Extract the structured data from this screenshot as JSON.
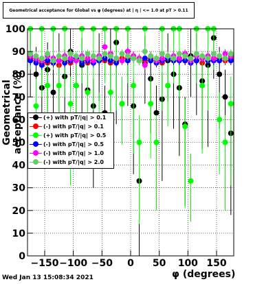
{
  "title": "Geometrical acceptance for Global vs φ (degrees) at | η | <= 1.0 at pT > 0.11",
  "timestamp": "Wed Jan 13 15:08:34 2021",
  "chart_data": {
    "type": "scatter",
    "xlabel": "φ (degrees)",
    "ylabel": "Geometrical acceptance (%)",
    "xlim": [
      -180,
      180
    ],
    "ylim": [
      0,
      100
    ],
    "xticks": [
      "-150",
      "-100",
      "-50",
      "0",
      "50",
      "100",
      "150"
    ],
    "yticks": [
      "0",
      "10",
      "20",
      "30",
      "40",
      "50",
      "60",
      "70",
      "80",
      "90",
      "100"
    ],
    "grid": true,
    "legend_position": "middle-left",
    "series": [
      {
        "name": "(+) with pT/|q| > 0.1",
        "color": "#000000",
        "x": [
          -175,
          -165,
          -155,
          -145,
          -135,
          -125,
          -115,
          -105,
          -95,
          -85,
          -75,
          -65,
          -55,
          -45,
          -35,
          -25,
          -15,
          -5,
          5,
          15,
          25,
          35,
          45,
          55,
          65,
          75,
          85,
          95,
          105,
          115,
          125,
          135,
          145,
          155,
          165,
          175
        ],
        "y": [
          88,
          80,
          74,
          82,
          72,
          86,
          79,
          90,
          75,
          84,
          73,
          66,
          86,
          63,
          88,
          94,
          67,
          90,
          66,
          33,
          85,
          78,
          63,
          69,
          86,
          80,
          74,
          58,
          88,
          86,
          77,
          84,
          96,
          80,
          70,
          54
        ]
      },
      {
        "name": "(-) with pT/|q| > 0.1",
        "color": "#ff0000",
        "x": [
          -175,
          -165,
          -155,
          -145,
          -135,
          -125,
          -115,
          -105,
          -95,
          -85,
          -75,
          -65,
          -55,
          -45,
          -35,
          -25,
          -15,
          -5,
          5,
          15,
          25,
          35,
          45,
          55,
          65,
          75,
          85,
          95,
          105,
          115,
          125,
          135,
          145,
          155,
          165,
          175
        ],
        "y": [
          87,
          86,
          85,
          85,
          86,
          84,
          86,
          85,
          87,
          86,
          85,
          86,
          87,
          86,
          85,
          86,
          87,
          87,
          88,
          86,
          86,
          87,
          86,
          85,
          87,
          86,
          87,
          86,
          86,
          86,
          85,
          86,
          87,
          87,
          86,
          87
        ]
      },
      {
        "name": "(+) with pT/|q| > 0.5",
        "color": "#00ff00",
        "x": [
          -175,
          -165,
          -155,
          -145,
          -135,
          -125,
          -115,
          -105,
          -95,
          -85,
          -75,
          -65,
          -55,
          -45,
          -35,
          -25,
          -15,
          -5,
          5,
          15,
          25,
          35,
          45,
          55,
          65,
          75,
          85,
          95,
          105,
          115,
          125,
          135,
          145,
          155,
          165,
          175
        ],
        "y": [
          100,
          66,
          100,
          75,
          100,
          75,
          100,
          67,
          75,
          100,
          72,
          100,
          60,
          100,
          72,
          100,
          67,
          100,
          75,
          50,
          100,
          67,
          50,
          100,
          75,
          100,
          100,
          57,
          33,
          100,
          75,
          100,
          100,
          60,
          50,
          67
        ]
      },
      {
        "name": "(-) with pT/|q| > 0.5",
        "color": "#0000ff",
        "x": [
          -175,
          -165,
          -155,
          -145,
          -135,
          -125,
          -115,
          -105,
          -95,
          -85,
          -75,
          -65,
          -55,
          -45,
          -35,
          -25,
          -15,
          -5,
          5,
          15,
          25,
          35,
          45,
          55,
          65,
          75,
          85,
          95,
          105,
          115,
          125,
          135,
          145,
          155,
          165,
          175
        ],
        "y": [
          86,
          85,
          84,
          86,
          85,
          86,
          85,
          86,
          87,
          85,
          86,
          85,
          86,
          87,
          86,
          85,
          86,
          86,
          87,
          86,
          87,
          86,
          85,
          86,
          87,
          86,
          86,
          86,
          85,
          86,
          87,
          86,
          86,
          86,
          87,
          86
        ]
      },
      {
        "name": "(-) with pT/|q| > 1.0",
        "color": "#ff00ff",
        "x": [
          -175,
          -165,
          -155,
          -145,
          -135,
          -125,
          -115,
          -105,
          -95,
          -85,
          -75,
          -65,
          -55,
          -45,
          -35,
          -25,
          -15,
          -5,
          5,
          15,
          25,
          35,
          45,
          55,
          65,
          75,
          85,
          95,
          105,
          115,
          125,
          135,
          145,
          155,
          165,
          175
        ],
        "y": [
          88,
          87,
          86,
          88,
          87,
          86,
          88,
          87,
          86,
          88,
          87,
          86,
          88,
          92,
          89,
          87,
          86,
          90,
          88,
          87,
          84,
          88,
          86,
          87,
          88,
          88,
          87,
          89,
          86,
          88,
          87,
          88,
          87,
          88,
          89,
          88
        ]
      },
      {
        "name": "(-) with pT/|q| > 2.0",
        "color": "#66cc66",
        "x": [
          -175,
          -165,
          -155,
          -145,
          -135,
          -125,
          -115,
          -105,
          -95,
          -85,
          -75,
          -65,
          -55,
          -45,
          -35,
          -25,
          -15,
          -5,
          5,
          15,
          25,
          35,
          45,
          55,
          65,
          75,
          85,
          95,
          105,
          115,
          125,
          135,
          145,
          155,
          165,
          175
        ],
        "y": [
          89,
          88,
          87,
          89,
          86,
          88,
          87,
          89,
          88,
          87,
          89,
          88,
          87,
          89,
          88,
          87,
          89,
          88,
          87,
          86,
          90,
          88,
          87,
          89,
          88,
          87,
          89,
          88,
          87,
          89,
          88,
          87,
          89,
          88,
          87,
          89
        ]
      }
    ]
  }
}
